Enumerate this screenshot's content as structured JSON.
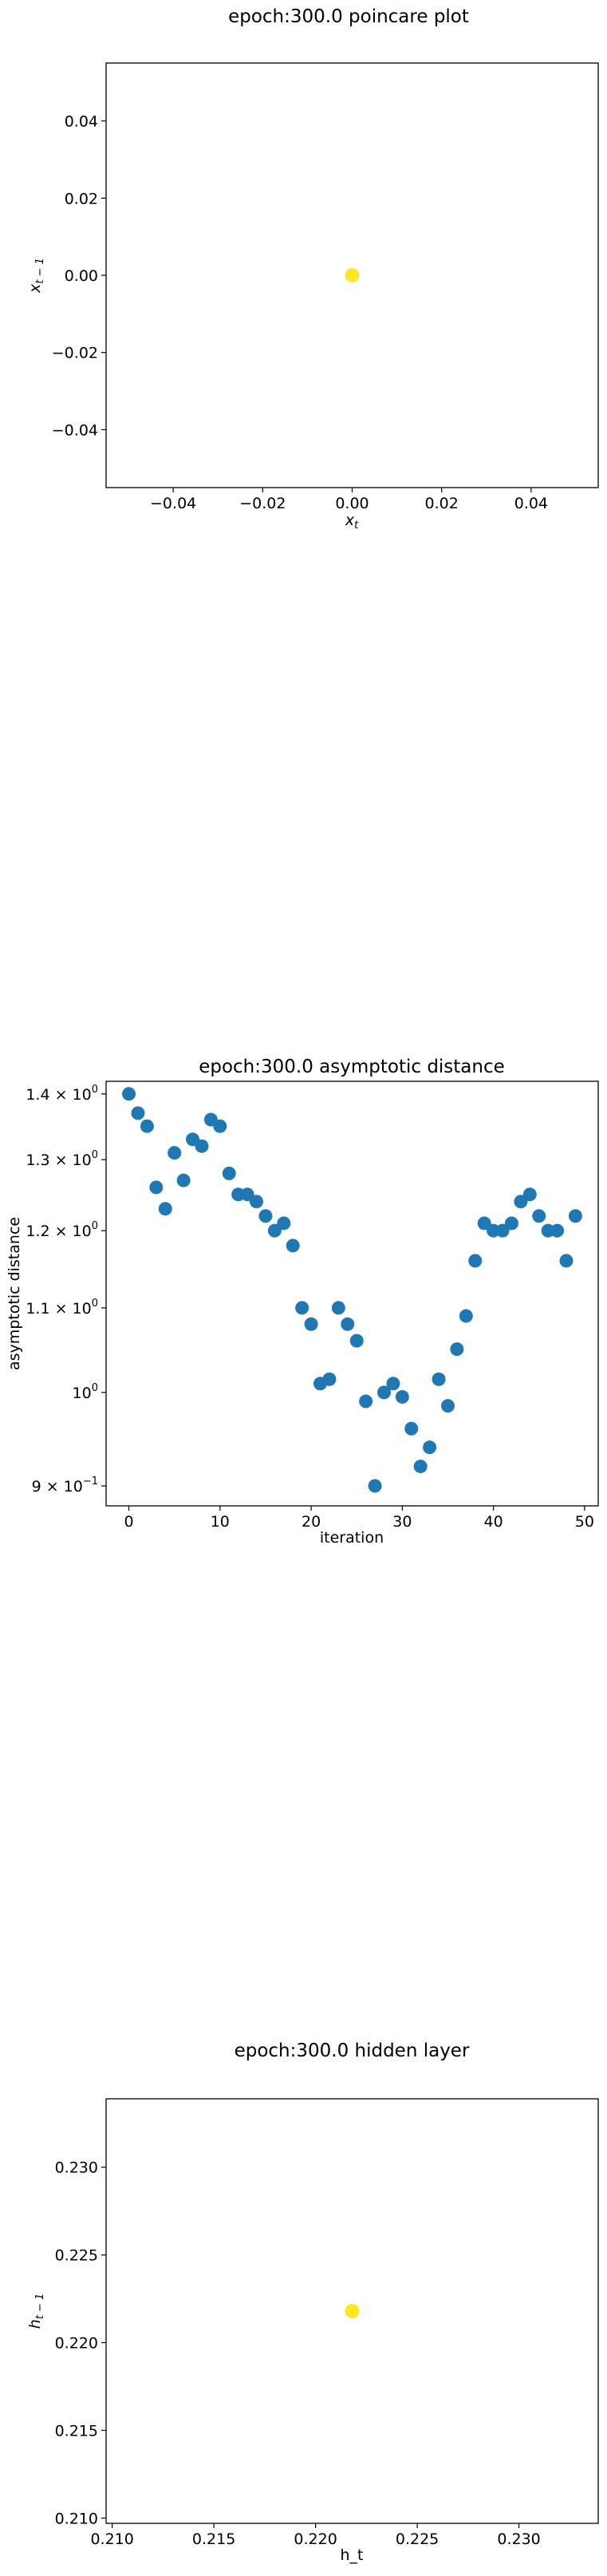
{
  "chart_data": [
    {
      "type": "scatter",
      "title": "epoch:300.0 poincare plot",
      "xlabel_base": "x",
      "xlabel_sub": "t",
      "ylabel_base": "x",
      "ylabel_sub": "t − 1",
      "xlim": [
        -0.055,
        0.055
      ],
      "ylim": [
        -0.055,
        0.055
      ],
      "xticks": [
        -0.04,
        -0.02,
        0.0,
        0.02,
        0.04
      ],
      "xtick_labels": [
        "−0.04",
        "−0.02",
        "0.00",
        "0.02",
        "0.04"
      ],
      "yticks": [
        -0.04,
        -0.02,
        0.0,
        0.02,
        0.04
      ],
      "ytick_labels": [
        "−0.04",
        "−0.02",
        "0.00",
        "0.02",
        "0.04"
      ],
      "point_color": "#fde725",
      "points": [
        {
          "x": 0.0,
          "y": 0.0
        }
      ]
    },
    {
      "type": "scatter",
      "title": "epoch:300.0 asymptotic distance",
      "xlabel": "iteration",
      "ylabel": "asymptotic distance",
      "yscale": "log",
      "xlim": [
        -2.5,
        51.5
      ],
      "ylim": [
        0.88,
        1.42
      ],
      "xticks": [
        0,
        10,
        20,
        30,
        40,
        50
      ],
      "xtick_labels": [
        "0",
        "10",
        "20",
        "30",
        "40",
        "50"
      ],
      "yticks": [
        {
          "value": 0.9,
          "base": "9 × 10",
          "exp": "−1"
        },
        {
          "value": 1.0,
          "base": "10",
          "exp": "0"
        },
        {
          "value": 1.1,
          "base": "1.1 × 10",
          "exp": "0"
        },
        {
          "value": 1.2,
          "base": "1.2 × 10",
          "exp": "0"
        },
        {
          "value": 1.3,
          "base": "1.3 × 10",
          "exp": "0"
        },
        {
          "value": 1.4,
          "base": "1.4 × 10",
          "exp": "0"
        }
      ],
      "point_color": "#1f77b4",
      "x": [
        0,
        1,
        2,
        3,
        4,
        5,
        6,
        7,
        8,
        9,
        10,
        11,
        12,
        13,
        14,
        15,
        16,
        17,
        18,
        19,
        20,
        21,
        22,
        23,
        24,
        25,
        26,
        27,
        28,
        29,
        30,
        31,
        32,
        33,
        34,
        35,
        36,
        37,
        38,
        39,
        40,
        41,
        42,
        43,
        44,
        45,
        46,
        47,
        48,
        49
      ],
      "y": [
        1.4,
        1.37,
        1.35,
        1.26,
        1.23,
        1.31,
        1.27,
        1.33,
        1.32,
        1.36,
        1.35,
        1.28,
        1.25,
        1.25,
        1.24,
        1.22,
        1.2,
        1.21,
        1.18,
        1.1,
        1.08,
        1.01,
        1.015,
        1.1,
        1.08,
        1.06,
        0.99,
        0.9,
        1.0,
        1.01,
        0.995,
        0.96,
        0.92,
        0.94,
        1.015,
        0.985,
        1.05,
        1.09,
        1.16,
        1.21,
        1.2,
        1.2,
        1.21,
        1.24,
        1.25,
        1.22,
        1.2,
        1.2,
        1.16,
        1.22
      ]
    },
    {
      "type": "scatter",
      "title": "epoch:300.0 hidden layer",
      "xlabel": "h_t",
      "ylabel_base": "h",
      "ylabel_sub": "t − 1",
      "xlim": [
        0.2097,
        0.2339
      ],
      "ylim": [
        0.2097,
        0.2339
      ],
      "xticks": [
        0.21,
        0.215,
        0.22,
        0.225,
        0.23
      ],
      "xtick_labels": [
        "0.210",
        "0.215",
        "0.220",
        "0.225",
        "0.230"
      ],
      "yticks": [
        0.21,
        0.215,
        0.22,
        0.225,
        0.23
      ],
      "ytick_labels": [
        "0.210",
        "0.215",
        "0.220",
        "0.225",
        "0.230"
      ],
      "point_color": "#fde725",
      "points": [
        {
          "x": 0.2218,
          "y": 0.2218
        }
      ]
    }
  ]
}
